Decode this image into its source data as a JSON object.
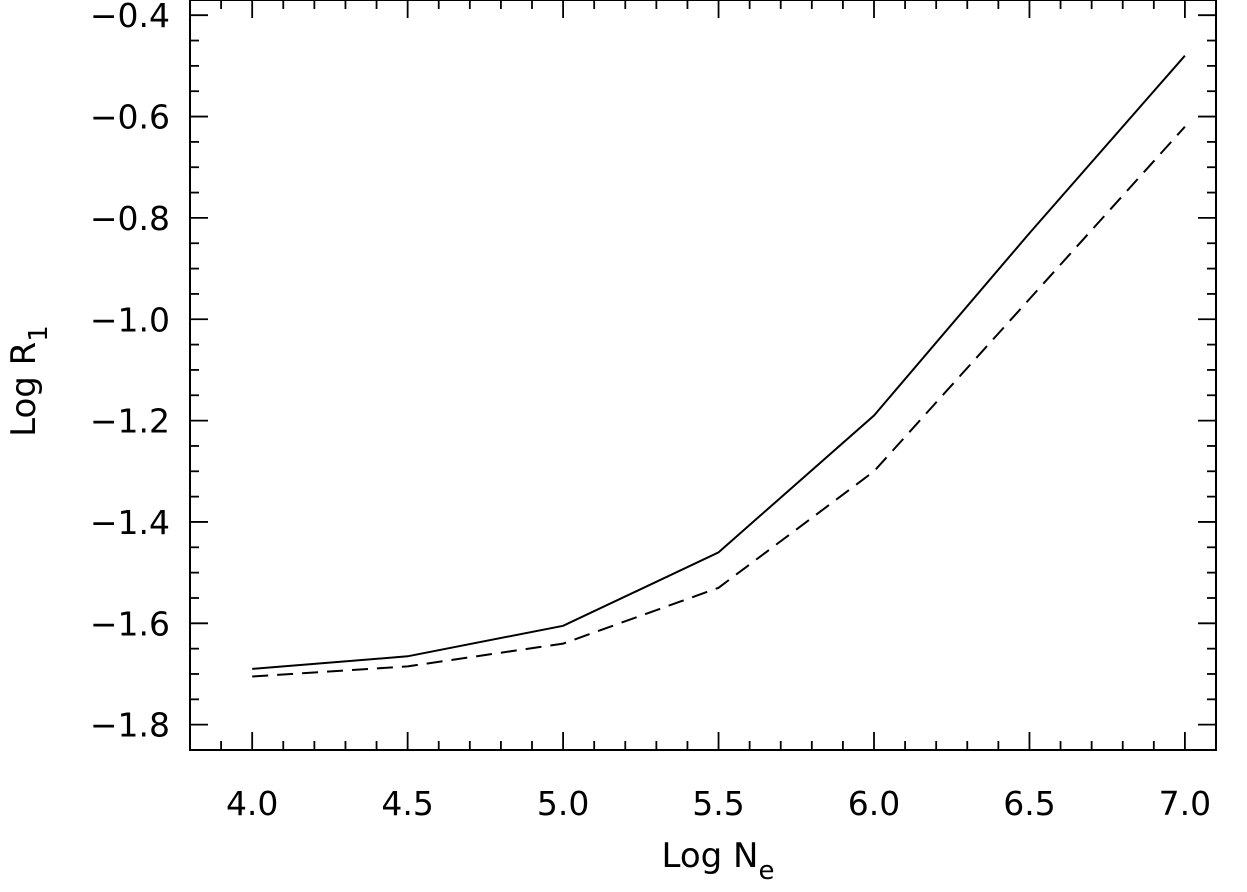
{
  "chart_data": {
    "type": "line",
    "title": "",
    "xlabel": {
      "main": "Log N",
      "sub": "e"
    },
    "ylabel": {
      "main": "Log R",
      "sub": "1"
    },
    "xlim": [
      3.8,
      7.1
    ],
    "ylim": [
      -1.85,
      -0.37
    ],
    "x_ticks": [
      4.0,
      4.5,
      5.0,
      5.5,
      6.0,
      6.5,
      7.0
    ],
    "x_tick_labels": [
      "4.0",
      "4.5",
      "5.0",
      "5.5",
      "6.0",
      "6.5",
      "7.0"
    ],
    "x_minor_step": 0.1,
    "y_ticks": [
      -1.8,
      -1.6,
      -1.4,
      -1.2,
      -1.0,
      -0.8,
      -0.6,
      -0.4
    ],
    "y_tick_labels": [
      "−1.8",
      "−1.6",
      "−1.4",
      "−1.2",
      "−1.0",
      "−0.8",
      "−0.6",
      "−0.4"
    ],
    "y_minor_step": 0.05,
    "grid": false,
    "legend": false,
    "x": [
      4.0,
      4.5,
      5.0,
      5.5,
      6.0,
      6.5,
      7.0
    ],
    "series": [
      {
        "style": "solid",
        "color": "#000000",
        "values": [
          -1.69,
          -1.665,
          -1.605,
          -1.46,
          -1.19,
          -0.83,
          -0.48
        ]
      },
      {
        "style": "dashed",
        "color": "#000000",
        "values": [
          -1.705,
          -1.685,
          -1.64,
          -1.53,
          -1.3,
          -0.96,
          -0.62
        ]
      }
    ]
  }
}
